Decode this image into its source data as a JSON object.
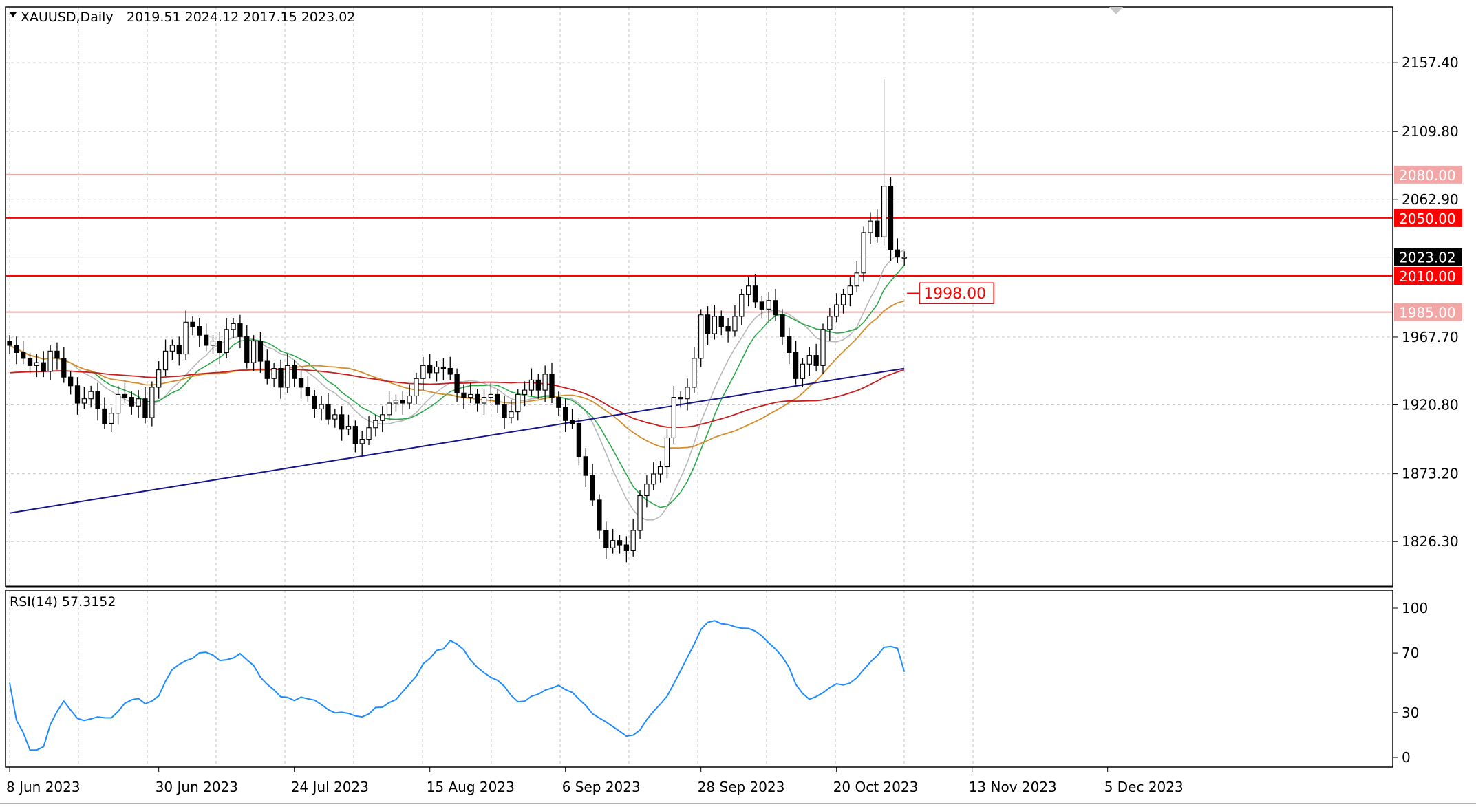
{
  "header": {
    "symbol": "XAUUSD,Daily",
    "ohlc": "2019.51 2024.12 2017.15 2023.02"
  },
  "indicator": {
    "label": "RSI(14) 57.3152"
  },
  "chart_data": [
    {
      "type": "candlestick",
      "symbol": "XAUUSD",
      "timeframe": "Daily",
      "ylim": [
        1795,
        2196
      ],
      "price_ticks": [
        "2157.40",
        "2109.80",
        "2062.90",
        "1967.70",
        "1920.80",
        "1873.20",
        "1826.30"
      ],
      "date_ticks": [
        "8 Jun 2023",
        "30 Jun 2023",
        "24 Jul 2023",
        "15 Aug 2023",
        "6 Sep 2023",
        "28 Sep 2023",
        "20 Oct 2023",
        "13 Nov 2023",
        "5 Dec 2023"
      ],
      "levels": [
        {
          "value": 2080.0,
          "label": "2080.00",
          "color": "#f2a6a6",
          "filled": true
        },
        {
          "value": 2050.0,
          "label": "2050.00",
          "color": "#ff0000",
          "filled": true
        },
        {
          "value": 2023.02,
          "label": "2023.02",
          "color": "#aaaaaa",
          "filled": true,
          "current": true
        },
        {
          "value": 2010.0,
          "label": "2010.00",
          "color": "#ff0000",
          "filled": true
        },
        {
          "value": 1985.0,
          "label": "1985.00",
          "color": "#f2a6a6",
          "filled": true
        }
      ],
      "annotation": {
        "value": 1998.0,
        "label": "1998.00",
        "color": "#ff0000"
      },
      "closes": [
        1962,
        1957,
        1953,
        1948,
        1950,
        1944,
        1958,
        1953,
        1940,
        1934,
        1922,
        1925,
        1930,
        1918,
        1908,
        1915,
        1928,
        1926,
        1920,
        1925,
        1912,
        1933,
        1945,
        1958,
        1962,
        1956,
        1978,
        1975,
        1969,
        1962,
        1965,
        1957,
        1973,
        1977,
        1968,
        1950,
        1965,
        1951,
        1939,
        1946,
        1933,
        1948,
        1939,
        1933,
        1927,
        1918,
        1921,
        1911,
        1914,
        1904,
        1906,
        1894,
        1897,
        1905,
        1910,
        1914,
        1922,
        1924,
        1922,
        1927,
        1939,
        1948,
        1943,
        1947,
        1946,
        1942,
        1929,
        1926,
        1928,
        1922,
        1926,
        1928,
        1921,
        1912,
        1916,
        1928,
        1931,
        1938,
        1931,
        1942,
        1926,
        1919,
        1910,
        1908,
        1885,
        1872,
        1855,
        1834,
        1822,
        1827,
        1824,
        1820,
        1834,
        1858,
        1866,
        1873,
        1878,
        1898,
        1926,
        1925,
        1933,
        1953,
        1983,
        1970,
        1982,
        1975,
        1972,
        1982,
        1997,
        2003,
        1992,
        1987,
        1993,
        1983,
        1968,
        1957,
        1939,
        1949,
        1955,
        1948,
        1973,
        1982,
        1990,
        1997,
        2003,
        2012,
        2040,
        2048,
        2037,
        2072,
        2028,
        2023,
        2023
      ],
      "ma_red": {
        "start": 1943,
        "end": 1940
      },
      "ma_blue": {
        "start": 1846,
        "end": 1946
      },
      "rsi": {
        "ylim": [
          0,
          100
        ],
        "ticks": [
          "100",
          "70",
          "30",
          "0"
        ],
        "last": 57.3152,
        "line_color": "#1e8cff"
      },
      "colors": {
        "bull": "#ffffff",
        "bear": "#000000",
        "grid": "#c8c8c8",
        "ma_green": "#2aa84a",
        "ma_orange": "#d58d2a",
        "ma_gray": "#b8b8b8",
        "ma_red": "#c81e1e",
        "ma_blue": "#14148c"
      }
    }
  ]
}
